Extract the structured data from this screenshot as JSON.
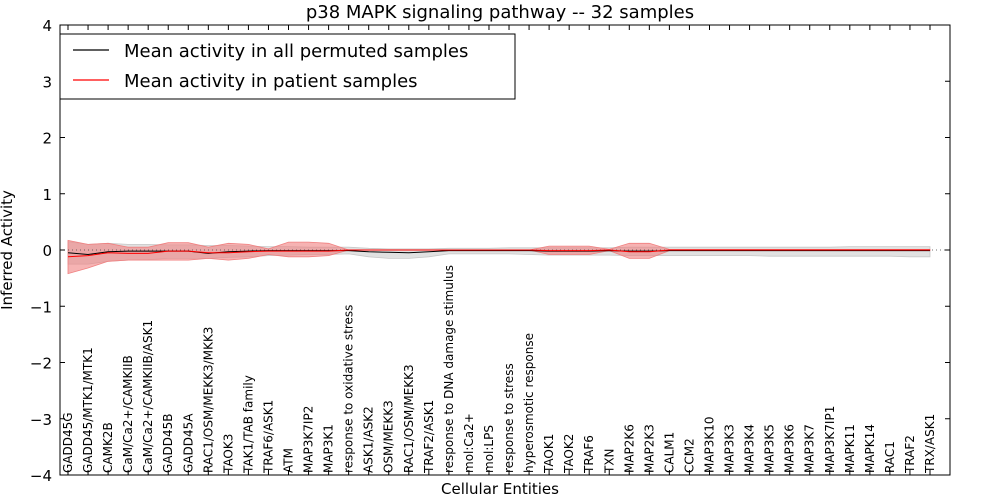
{
  "chart_data": {
    "type": "line",
    "title": "p38 MAPK signaling pathway -- 32 samples",
    "xlabel": "Cellular Entities",
    "ylabel": "Inferred Activity",
    "ylim": [
      -4,
      4
    ],
    "yticks": [
      4,
      3,
      2,
      1,
      0,
      -1,
      -2,
      -3,
      -4
    ],
    "ytick_labels": [
      "4",
      "3",
      "2",
      "1",
      "0",
      "−1",
      "−2",
      "−3",
      "−4"
    ],
    "legend_position": "top-left",
    "categories": [
      "GADD45G",
      "GADD45/MTK1/MTK1",
      "CAMK2B",
      "CaM/Ca2+/CAMKIIB",
      "CaM/Ca2+/CAMKIIB/ASK1",
      "GADD45B",
      "GADD45A",
      "RAC1/OSM/MEKK3/MKK3",
      "TAOK3",
      "TAK1/TAB family",
      "TRAF6/ASK1",
      "ATM",
      "MAP3K7IP2",
      "MAP3K1",
      "response to oxidative stress",
      "ASK1/ASK2",
      "OSM/MEKK3",
      "RAC1/OSM/MEKK3",
      "TRAF2/ASK1",
      "response to DNA damage stimulus",
      "mol:Ca2+",
      "mol:LPS",
      "response to stress",
      "hyperosmotic response",
      "TAOK1",
      "TAOK2",
      "TRAF6",
      "TXN",
      "MAP2K6",
      "MAP2K3",
      "CALM1",
      "CCM2",
      "MAP3K10",
      "MAP3K3",
      "MAP3K4",
      "MAP3K5",
      "MAP3K6",
      "MAP3K7",
      "MAP3K7IP1",
      "MAPK11",
      "MAPK14",
      "RAC1",
      "TRAF2",
      "TRX/ASK1"
    ],
    "series": [
      {
        "name": "Mean activity in all permuted samples",
        "color": "#000000",
        "band_color": "#c8c8c8",
        "values": [
          -0.05,
          -0.08,
          -0.03,
          -0.02,
          -0.02,
          -0.02,
          -0.02,
          -0.06,
          -0.03,
          -0.02,
          -0.01,
          -0.01,
          -0.01,
          -0.01,
          -0.01,
          -0.03,
          -0.04,
          -0.05,
          -0.03,
          -0.01,
          -0.01,
          -0.01,
          -0.01,
          -0.01,
          -0.02,
          -0.02,
          -0.02,
          -0.01,
          -0.02,
          -0.02,
          -0.01,
          -0.01,
          -0.01,
          -0.01,
          -0.01,
          -0.01,
          -0.01,
          -0.01,
          -0.01,
          -0.01,
          -0.01,
          -0.01,
          -0.01,
          -0.01
        ],
        "band_upper": [
          0.15,
          0.1,
          0.12,
          0.1,
          0.1,
          0.09,
          0.09,
          0.08,
          0.08,
          0.07,
          0.06,
          0.06,
          0.05,
          0.05,
          0.05,
          0.03,
          0.02,
          0.02,
          0.02,
          0.03,
          0.03,
          0.03,
          0.04,
          0.04,
          0.04,
          0.04,
          0.04,
          0.04,
          0.05,
          0.05,
          0.05,
          0.05,
          0.05,
          0.05,
          0.05,
          0.05,
          0.05,
          0.05,
          0.05,
          0.06,
          0.06,
          0.06,
          0.06,
          0.06
        ],
        "band_lower": [
          -0.25,
          -0.25,
          -0.2,
          -0.18,
          -0.17,
          -0.15,
          -0.15,
          -0.15,
          -0.13,
          -0.12,
          -0.1,
          -0.09,
          -0.08,
          -0.08,
          -0.07,
          -0.12,
          -0.15,
          -0.15,
          -0.12,
          -0.07,
          -0.07,
          -0.07,
          -0.07,
          -0.08,
          -0.09,
          -0.09,
          -0.09,
          -0.09,
          -0.1,
          -0.1,
          -0.1,
          -0.1,
          -0.1,
          -0.1,
          -0.1,
          -0.11,
          -0.11,
          -0.11,
          -0.11,
          -0.11,
          -0.11,
          -0.11,
          -0.12,
          -0.12
        ]
      },
      {
        "name": "Mean activity in patient samples",
        "color": "#ff0000",
        "band_color": "#f08080",
        "values": [
          -0.12,
          -0.1,
          -0.05,
          -0.06,
          -0.06,
          -0.02,
          -0.02,
          -0.05,
          -0.05,
          -0.03,
          -0.02,
          -0.02,
          -0.02,
          -0.02,
          0.0,
          0.0,
          0.0,
          0.0,
          0.0,
          0.0,
          0.0,
          0.0,
          0.0,
          0.0,
          -0.01,
          -0.01,
          -0.01,
          0.0,
          -0.03,
          -0.03,
          0.0,
          0.0,
          0.0,
          0.0,
          0.0,
          0.0,
          0.0,
          0.0,
          0.0,
          0.0,
          0.0,
          0.0,
          0.0,
          0.0
        ],
        "band_upper": [
          0.17,
          0.1,
          0.12,
          0.05,
          0.05,
          0.13,
          0.13,
          0.05,
          0.12,
          0.1,
          0.02,
          0.14,
          0.14,
          0.12,
          0.0,
          0.0,
          0.0,
          0.0,
          0.0,
          0.0,
          0.0,
          0.0,
          0.0,
          0.0,
          0.07,
          0.07,
          0.07,
          0.01,
          0.12,
          0.12,
          0.01,
          0.01,
          0.01,
          0.01,
          0.01,
          0.01,
          0.01,
          0.01,
          0.01,
          0.01,
          0.01,
          0.01,
          0.01,
          0.01
        ],
        "band_lower": [
          -0.42,
          -0.32,
          -0.2,
          -0.18,
          -0.18,
          -0.18,
          -0.18,
          -0.15,
          -0.18,
          -0.15,
          -0.08,
          -0.12,
          -0.12,
          -0.1,
          0.0,
          0.0,
          0.0,
          0.0,
          0.0,
          0.0,
          0.0,
          0.0,
          0.0,
          0.0,
          -0.08,
          -0.08,
          -0.08,
          -0.01,
          -0.15,
          -0.15,
          -0.01,
          -0.01,
          -0.01,
          -0.01,
          -0.01,
          -0.01,
          -0.01,
          -0.01,
          -0.01,
          -0.01,
          -0.01,
          -0.01,
          -0.01,
          -0.01
        ]
      }
    ]
  }
}
